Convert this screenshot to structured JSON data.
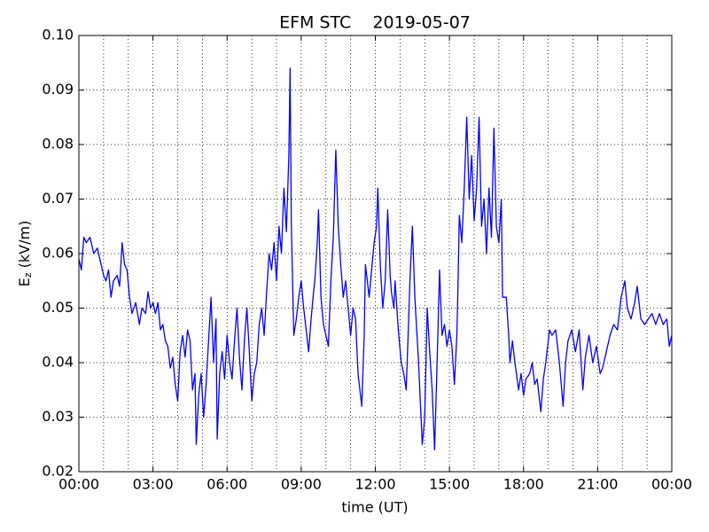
{
  "chart_data": {
    "type": "line",
    "title": "EFM STC    2019-05-07",
    "xlabel": "time (UT)",
    "ylabel": {
      "base": "E",
      "subscript": "z",
      "rest": " (kV/m)"
    },
    "color": "#0000ff",
    "grid": true,
    "xlim": [
      0,
      24
    ],
    "xticks": [
      {
        "value": 0,
        "label": "00:00"
      },
      {
        "value": 3,
        "label": "03:00"
      },
      {
        "value": 6,
        "label": "06:00"
      },
      {
        "value": 9,
        "label": "09:00"
      },
      {
        "value": 12,
        "label": "12:00"
      },
      {
        "value": 15,
        "label": "15:00"
      },
      {
        "value": 18,
        "label": "18:00"
      },
      {
        "value": 21,
        "label": "21:00"
      },
      {
        "value": 24,
        "label": "00:00"
      }
    ],
    "xminorticks": [
      1,
      2,
      4,
      5,
      7,
      8,
      10,
      11,
      13,
      14,
      16,
      17,
      19,
      20,
      22,
      23
    ],
    "ylim": [
      0.02,
      0.1
    ],
    "yticks": [
      0.02,
      0.03,
      0.04,
      0.05,
      0.06,
      0.07,
      0.08,
      0.09,
      {
        "value": 0.1,
        "label": "0.10"
      }
    ],
    "x": [
      0.0,
      0.1,
      0.2,
      0.3,
      0.45,
      0.6,
      0.75,
      0.9,
      1.0,
      1.1,
      1.2,
      1.3,
      1.4,
      1.55,
      1.65,
      1.75,
      1.85,
      1.95,
      2.05,
      2.15,
      2.3,
      2.45,
      2.55,
      2.7,
      2.8,
      2.9,
      3.0,
      3.1,
      3.2,
      3.3,
      3.4,
      3.5,
      3.6,
      3.7,
      3.8,
      3.9,
      4.0,
      4.1,
      4.2,
      4.3,
      4.4,
      4.5,
      4.6,
      4.7,
      4.75,
      4.85,
      4.95,
      5.05,
      5.15,
      5.25,
      5.35,
      5.45,
      5.55,
      5.6,
      5.7,
      5.8,
      5.9,
      6.0,
      6.1,
      6.2,
      6.3,
      6.4,
      6.5,
      6.6,
      6.7,
      6.8,
      6.9,
      7.0,
      7.1,
      7.2,
      7.3,
      7.4,
      7.5,
      7.6,
      7.7,
      7.8,
      7.9,
      8.0,
      8.1,
      8.2,
      8.3,
      8.4,
      8.45,
      8.5,
      8.55,
      8.6,
      8.7,
      8.8,
      8.9,
      9.0,
      9.1,
      9.2,
      9.3,
      9.4,
      9.5,
      9.55,
      9.65,
      9.7,
      9.8,
      9.9,
      10.0,
      10.1,
      10.2,
      10.3,
      10.4,
      10.5,
      10.6,
      10.7,
      10.8,
      10.9,
      11.0,
      11.1,
      11.2,
      11.3,
      11.45,
      11.55,
      11.6,
      11.7,
      11.75,
      11.85,
      11.95,
      12.05,
      12.1,
      12.2,
      12.3,
      12.4,
      12.5,
      12.6,
      12.65,
      12.75,
      12.8,
      12.9,
      12.95,
      13.05,
      13.15,
      13.25,
      13.35,
      13.4,
      13.5,
      13.6,
      13.65,
      13.75,
      13.85,
      13.9,
      14.0,
      14.1,
      14.2,
      14.3,
      14.4,
      14.5,
      14.6,
      14.7,
      14.8,
      14.9,
      15.0,
      15.1,
      15.2,
      15.3,
      15.35,
      15.4,
      15.5,
      15.6,
      15.7,
      15.8,
      15.9,
      16.0,
      16.1,
      16.2,
      16.3,
      16.4,
      16.5,
      16.6,
      16.7,
      16.8,
      16.9,
      17.0,
      17.1,
      17.15,
      17.3,
      17.4,
      17.45,
      17.55,
      17.65,
      17.8,
      17.9,
      18.0,
      18.1,
      18.25,
      18.35,
      18.45,
      18.55,
      18.7,
      18.8,
      18.9,
      19.05,
      19.15,
      19.3,
      19.45,
      19.6,
      19.7,
      19.8,
      19.95,
      20.1,
      20.25,
      20.4,
      20.5,
      20.65,
      20.8,
      20.95,
      21.1,
      21.2,
      21.35,
      21.5,
      21.65,
      21.8,
      21.95,
      22.1,
      22.2,
      22.35,
      22.5,
      22.6,
      22.75,
      22.9,
      23.05,
      23.2,
      23.35,
      23.5,
      23.65,
      23.8,
      23.9,
      24.0
    ],
    "values": [
      0.059,
      0.057,
      0.063,
      0.062,
      0.063,
      0.06,
      0.061,
      0.058,
      0.056,
      0.055,
      0.057,
      0.052,
      0.055,
      0.056,
      0.054,
      0.062,
      0.058,
      0.057,
      0.052,
      0.049,
      0.051,
      0.047,
      0.05,
      0.049,
      0.053,
      0.05,
      0.051,
      0.049,
      0.051,
      0.046,
      0.047,
      0.044,
      0.043,
      0.039,
      0.041,
      0.036,
      0.033,
      0.042,
      0.045,
      0.041,
      0.046,
      0.044,
      0.035,
      0.038,
      0.025,
      0.034,
      0.038,
      0.03,
      0.036,
      0.044,
      0.052,
      0.04,
      0.048,
      0.026,
      0.038,
      0.042,
      0.037,
      0.045,
      0.04,
      0.037,
      0.044,
      0.05,
      0.041,
      0.035,
      0.044,
      0.05,
      0.042,
      0.033,
      0.038,
      0.04,
      0.047,
      0.05,
      0.045,
      0.053,
      0.06,
      0.057,
      0.062,
      0.055,
      0.065,
      0.06,
      0.072,
      0.064,
      0.071,
      0.078,
      0.094,
      0.065,
      0.045,
      0.048,
      0.052,
      0.055,
      0.05,
      0.046,
      0.042,
      0.048,
      0.053,
      0.055,
      0.062,
      0.068,
      0.052,
      0.047,
      0.045,
      0.043,
      0.055,
      0.063,
      0.079,
      0.065,
      0.058,
      0.052,
      0.055,
      0.05,
      0.045,
      0.05,
      0.048,
      0.038,
      0.032,
      0.045,
      0.058,
      0.054,
      0.052,
      0.057,
      0.062,
      0.065,
      0.072,
      0.058,
      0.05,
      0.055,
      0.068,
      0.056,
      0.053,
      0.05,
      0.055,
      0.048,
      0.045,
      0.04,
      0.038,
      0.035,
      0.048,
      0.055,
      0.065,
      0.052,
      0.048,
      0.04,
      0.03,
      0.025,
      0.03,
      0.05,
      0.042,
      0.035,
      0.024,
      0.04,
      0.057,
      0.045,
      0.047,
      0.043,
      0.046,
      0.043,
      0.036,
      0.045,
      0.055,
      0.067,
      0.062,
      0.072,
      0.085,
      0.07,
      0.078,
      0.066,
      0.072,
      0.085,
      0.065,
      0.07,
      0.06,
      0.072,
      0.063,
      0.083,
      0.065,
      0.062,
      0.07,
      0.052,
      0.052,
      0.045,
      0.04,
      0.044,
      0.04,
      0.035,
      0.038,
      0.034,
      0.037,
      0.038,
      0.04,
      0.036,
      0.037,
      0.031,
      0.037,
      0.04,
      0.046,
      0.045,
      0.046,
      0.04,
      0.032,
      0.04,
      0.044,
      0.046,
      0.042,
      0.046,
      0.035,
      0.041,
      0.045,
      0.04,
      0.043,
      0.038,
      0.039,
      0.042,
      0.045,
      0.047,
      0.046,
      0.052,
      0.055,
      0.05,
      0.048,
      0.051,
      0.054,
      0.048,
      0.047,
      0.048,
      0.049,
      0.047,
      0.049,
      0.047,
      0.048,
      0.043,
      0.045
    ]
  }
}
